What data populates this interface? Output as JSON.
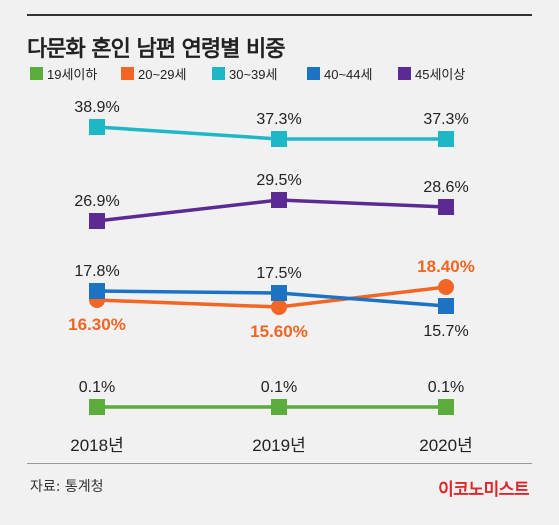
{
  "title": "다문화 혼인 남편 연령별 비중",
  "source": "자료: 통계청",
  "brand": "이코노미스트",
  "chart_data": {
    "type": "line",
    "x": [
      "2018년",
      "2019년",
      "2020년"
    ],
    "series": [
      {
        "name": "19세이하",
        "color": "#5aac3d",
        "marker": "square",
        "values": [
          0.1,
          0.1,
          0.1
        ],
        "labels": [
          "0.1%",
          "0.1%",
          "0.1%"
        ],
        "label_pos": "above",
        "label_color": "#222",
        "label_bold": false
      },
      {
        "name": "20~29세",
        "color": "#f26522",
        "marker": "circle",
        "values": [
          16.3,
          15.6,
          18.4
        ],
        "labels": [
          "16.30%",
          "15.60%",
          "18.40%"
        ],
        "label_pos": [
          "below",
          "below",
          "above"
        ],
        "label_color": "#f26522",
        "label_bold": true
      },
      {
        "name": "30~39세",
        "color": "#1db7c6",
        "marker": "square",
        "values": [
          38.9,
          37.3,
          37.3
        ],
        "labels": [
          "38.9%",
          "37.3%",
          "37.3%"
        ],
        "label_pos": "above",
        "label_color": "#222",
        "label_bold": false
      },
      {
        "name": "40~44세",
        "color": "#1c73c4",
        "marker": "square",
        "values": [
          17.8,
          17.5,
          15.7
        ],
        "labels": [
          "17.8%",
          "17.5%",
          "15.7%"
        ],
        "label_pos": [
          "above",
          "above",
          "below"
        ],
        "label_color": "#222",
        "label_bold": false
      },
      {
        "name": "45세이상",
        "color": "#5b2a92",
        "marker": "square",
        "values": [
          26.9,
          29.5,
          28.6
        ],
        "labels": [
          "26.9%",
          "29.5%",
          "28.6%"
        ],
        "label_pos": "above",
        "label_color": "#222",
        "label_bold": false
      }
    ],
    "legend": "top",
    "grid": false
  }
}
